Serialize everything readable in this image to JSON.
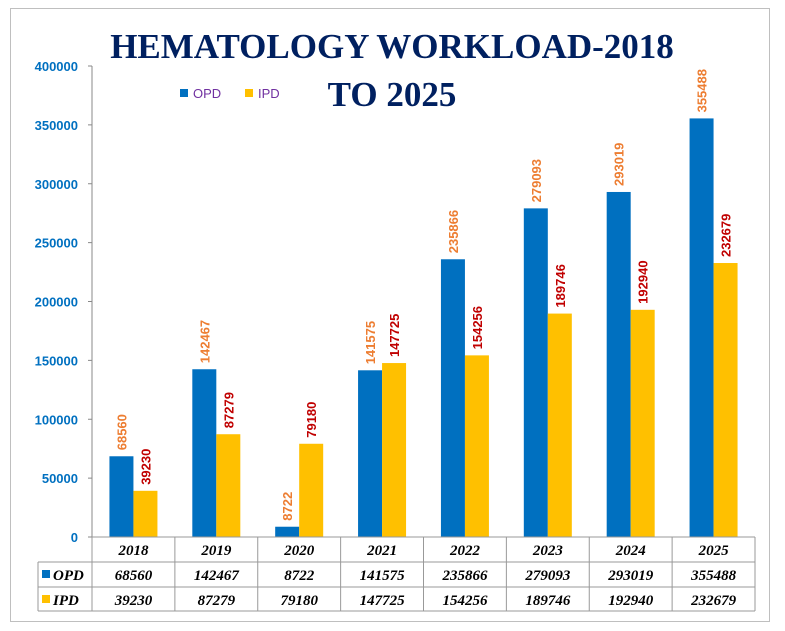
{
  "chart_data": {
    "type": "bar",
    "title_line1": "HEMATOLOGY WORKLOAD-2018",
    "title_line2": "TO 2025",
    "categories": [
      "2018",
      "2019",
      "2020",
      "2021",
      "2022",
      "2023",
      "2024",
      "2025"
    ],
    "series": [
      {
        "name": "OPD",
        "values": [
          68560,
          142467,
          8722,
          141575,
          235866,
          279093,
          293019,
          355488
        ],
        "color": "#0070C0",
        "label_color": "#ED7D31"
      },
      {
        "name": "IPD",
        "values": [
          39230,
          87279,
          79180,
          147725,
          154256,
          189746,
          192940,
          232679
        ],
        "color": "#FFC000",
        "label_color": "#C00000"
      }
    ],
    "ylim": [
      0,
      400000
    ],
    "yticks": [
      0,
      50000,
      100000,
      150000,
      200000,
      250000,
      300000,
      350000,
      400000
    ],
    "legend": "top-center",
    "data_table": true,
    "colors": {
      "title": "#002060",
      "axis_labels": "#0070C0",
      "legend_text": "#7030A0"
    }
  }
}
